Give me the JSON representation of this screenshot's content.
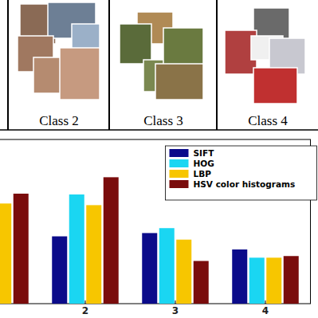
{
  "header": {
    "classes": [
      "Class 2",
      "Class 3",
      "Class 4"
    ]
  },
  "chart_data": {
    "type": "bar",
    "categories": [
      null,
      "2",
      "3",
      "4"
    ],
    "series": [
      {
        "name": "SIFT",
        "color": "#0b0b8a",
        "values": [
          null,
          0.41,
          0.43,
          0.33
        ]
      },
      {
        "name": "HOG",
        "color": "#1ad6f2",
        "values": [
          null,
          0.665,
          0.46,
          0.28
        ]
      },
      {
        "name": "LBP",
        "color": "#f7c600",
        "values": [
          0.61,
          0.6,
          0.39,
          0.28
        ]
      },
      {
        "name": "HSV color histograms",
        "color": "#7a0c0c",
        "values": [
          0.67,
          0.77,
          0.26,
          0.29
        ]
      }
    ],
    "ylim": [
      0,
      1
    ],
    "legend": "upper right",
    "tick_labels": "x"
  }
}
